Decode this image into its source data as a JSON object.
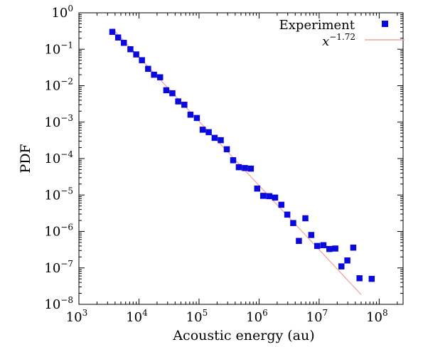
{
  "chart_data": {
    "type": "scatter",
    "xlabel": "Acoustic energy (au)",
    "ylabel": "PDF",
    "x_scale": "log",
    "y_scale": "log",
    "xlim": [
      1000,
      250000000
    ],
    "ylim": [
      1e-08,
      1
    ],
    "x_ticks": [
      {
        "value": 1000,
        "base": "10",
        "exp": "3"
      },
      {
        "value": 10000,
        "base": "10",
        "exp": "4"
      },
      {
        "value": 100000,
        "base": "10",
        "exp": "5"
      },
      {
        "value": 1000000,
        "base": "10",
        "exp": "6"
      },
      {
        "value": 10000000,
        "base": "10",
        "exp": "7"
      },
      {
        "value": 100000000,
        "base": "10",
        "exp": "8"
      }
    ],
    "y_ticks": [
      {
        "value": 1,
        "base": "10",
        "exp": "0"
      },
      {
        "value": 0.1,
        "base": "10",
        "exp": "−1"
      },
      {
        "value": 0.01,
        "base": "10",
        "exp": "−2"
      },
      {
        "value": 0.001,
        "base": "10",
        "exp": "−3"
      },
      {
        "value": 0.0001,
        "base": "10",
        "exp": "−4"
      },
      {
        "value": 1e-05,
        "base": "10",
        "exp": "−5"
      },
      {
        "value": 1e-06,
        "base": "10",
        "exp": "−6"
      },
      {
        "value": 1e-07,
        "base": "10",
        "exp": "−7"
      },
      {
        "value": 1e-08,
        "base": "10",
        "exp": "−8"
      }
    ],
    "legend_position": "top-right",
    "grid": false,
    "series": [
      {
        "name": "Experiment",
        "kind": "points",
        "color": "#0a0adc",
        "x": [
          3600.0,
          4500.0,
          5600.0,
          7200.0,
          9000.0,
          11200.0,
          14200.0,
          17800.0,
          22500.0,
          28500.0,
          36000.0,
          45000.0,
          57000.0,
          72000.0,
          92000.0,
          115000.0,
          145000.0,
          182000.0,
          230000.0,
          290000.0,
          370000.0,
          460000.0,
          580000.0,
          730000.0,
          930000.0,
          1170000.0,
          1480000.0,
          1850000.0,
          2350000.0,
          2950000.0,
          3700000.0,
          4600000.0,
          5900000.0,
          7400000.0,
          9300000.0,
          11800000.0,
          14800000.0,
          18600000.0,
          23500000.0,
          29500000.0,
          37000000.0,
          47000000.0,
          75000000.0
        ],
        "y": [
          0.3,
          0.21,
          0.15,
          0.1,
          0.072,
          0.05,
          0.029,
          0.02,
          0.017,
          0.0075,
          0.0062,
          0.0037,
          0.003,
          0.0016,
          0.0013,
          0.00062,
          0.00053,
          0.00037,
          0.00032,
          0.00018,
          9e-05,
          5.8e-05,
          5.5e-05,
          5.3e-05,
          1.5e-05,
          9.5e-06,
          9.3e-06,
          8.5e-06,
          5.4e-06,
          2.9e-06,
          1.7e-06,
          5.5e-07,
          2.3e-06,
          8e-07,
          4e-07,
          4.2e-07,
          3.3e-07,
          3.4e-07,
          1.1e-07,
          1.6e-07,
          3.6e-07,
          5.2e-08,
          5e-08
        ]
      },
      {
        "name": "x^{−1.72}",
        "kind": "line",
        "color": "#f4a3a3",
        "label_base": "x",
        "label_exp": "−1.72",
        "exponent": -1.72,
        "x": [
          3600.0,
          50000000.0
        ],
        "y": [
          0.37,
          1.85e-08
        ]
      }
    ]
  }
}
